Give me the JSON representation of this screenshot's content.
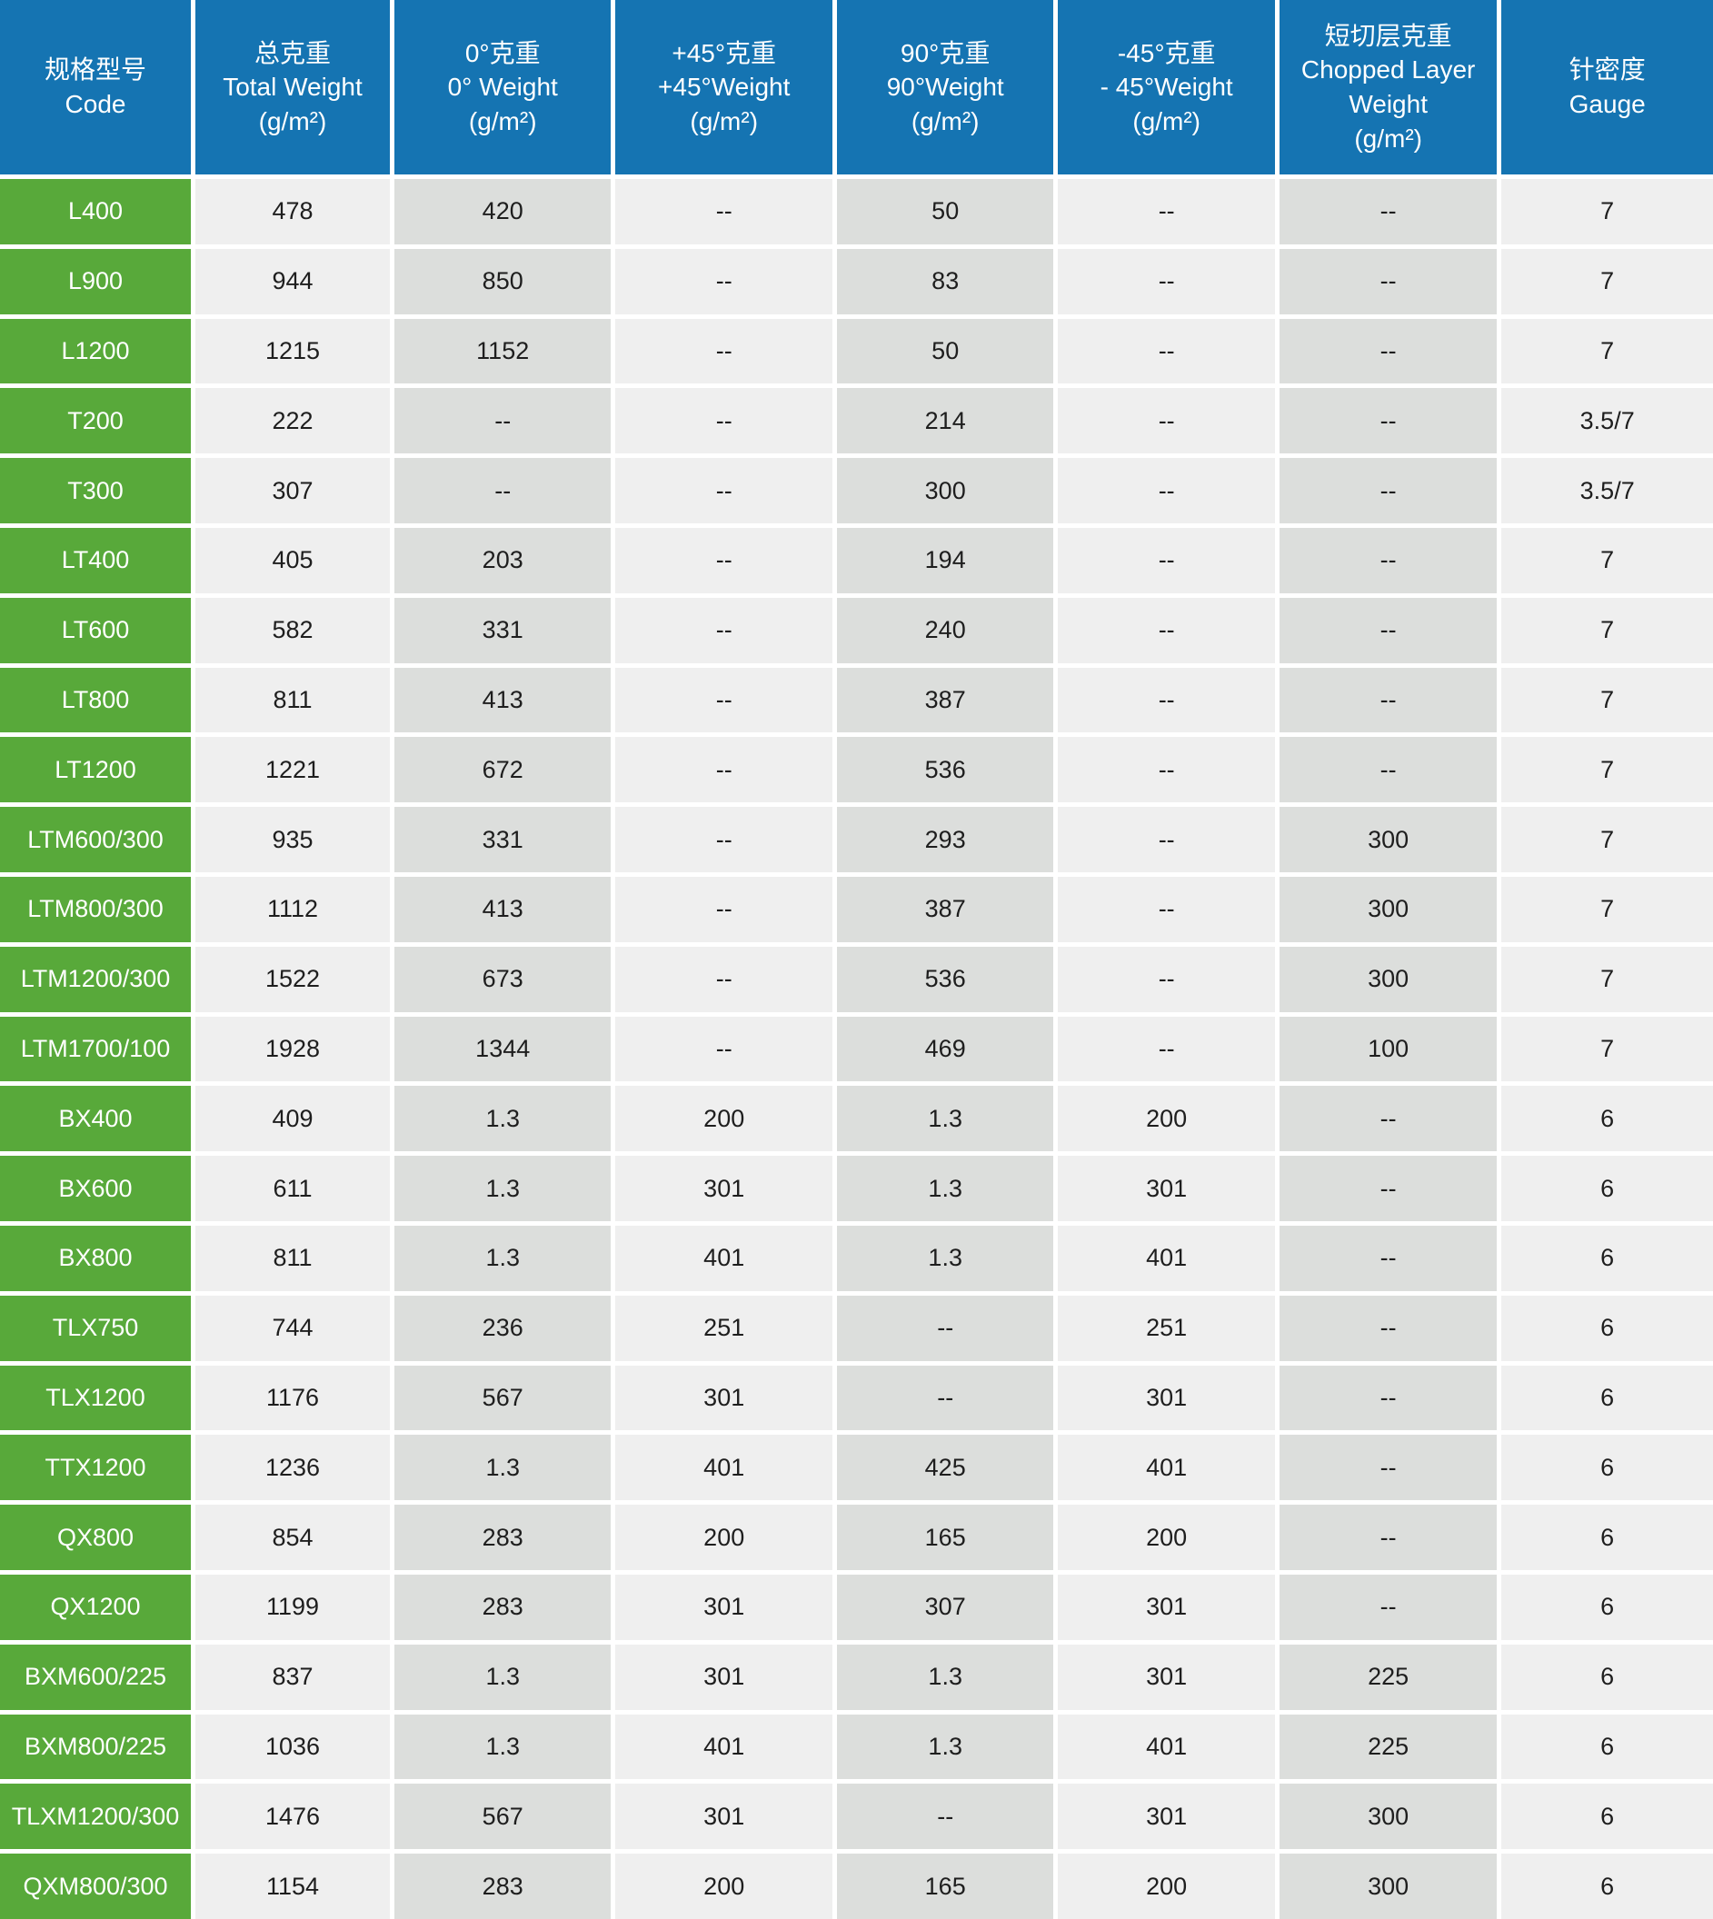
{
  "table": {
    "columns": [
      {
        "zh": "规格型号",
        "en": "Code",
        "unit": ""
      },
      {
        "zh": "总克重",
        "en": "Total Weight",
        "unit": "(g/m²)"
      },
      {
        "zh": "0°克重",
        "en": "0° Weight",
        "unit": "(g/m²)"
      },
      {
        "zh": "+45°克重",
        "en": "+45°Weight",
        "unit": "(g/m²)"
      },
      {
        "zh": "90°克重",
        "en": "90°Weight",
        "unit": "(g/m²)"
      },
      {
        "zh": "-45°克重",
        "en": "- 45°Weight",
        "unit": "(g/m²)"
      },
      {
        "zh": "短切层克重",
        "en": "Chopped Layer Weight",
        "unit": "(g/m²)"
      },
      {
        "zh": "针密度",
        "en": "Gauge",
        "unit": ""
      }
    ],
    "rows": [
      [
        "L400",
        "478",
        "420",
        "--",
        "50",
        "--",
        "--",
        "7"
      ],
      [
        "L900",
        "944",
        "850",
        "--",
        "83",
        "--",
        "--",
        "7"
      ],
      [
        "L1200",
        "1215",
        "1152",
        "--",
        "50",
        "--",
        "--",
        "7"
      ],
      [
        "T200",
        "222",
        "--",
        "--",
        "214",
        "--",
        "--",
        "3.5/7"
      ],
      [
        "T300",
        "307",
        "--",
        "--",
        "300",
        "--",
        "--",
        "3.5/7"
      ],
      [
        "LT400",
        "405",
        "203",
        "--",
        "194",
        "--",
        "--",
        "7"
      ],
      [
        "LT600",
        "582",
        "331",
        "--",
        "240",
        "--",
        "--",
        "7"
      ],
      [
        "LT800",
        "811",
        "413",
        "--",
        "387",
        "--",
        "--",
        "7"
      ],
      [
        "LT1200",
        "1221",
        "672",
        "--",
        "536",
        "--",
        "--",
        "7"
      ],
      [
        "LTM600/300",
        "935",
        "331",
        "--",
        "293",
        "--",
        "300",
        "7"
      ],
      [
        "LTM800/300",
        "1112",
        "413",
        "--",
        "387",
        "--",
        "300",
        "7"
      ],
      [
        "LTM1200/300",
        "1522",
        "673",
        "--",
        "536",
        "--",
        "300",
        "7"
      ],
      [
        "LTM1700/100",
        "1928",
        "1344",
        "--",
        "469",
        "--",
        "100",
        "7"
      ],
      [
        "BX400",
        "409",
        "1.3",
        "200",
        "1.3",
        "200",
        "--",
        "6"
      ],
      [
        "BX600",
        "611",
        "1.3",
        "301",
        "1.3",
        "301",
        "--",
        "6"
      ],
      [
        "BX800",
        "811",
        "1.3",
        "401",
        "1.3",
        "401",
        "--",
        "6"
      ],
      [
        "TLX750",
        "744",
        "236",
        "251",
        "--",
        "251",
        "--",
        "6"
      ],
      [
        "TLX1200",
        "1176",
        "567",
        "301",
        "--",
        "301",
        "--",
        "6"
      ],
      [
        "TTX1200",
        "1236",
        "1.3",
        "401",
        "425",
        "401",
        "--",
        "6"
      ],
      [
        "QX800",
        "854",
        "283",
        "200",
        "165",
        "200",
        "--",
        "6"
      ],
      [
        "QX1200",
        "1199",
        "283",
        "301",
        "307",
        "301",
        "--",
        "6"
      ],
      [
        "BXM600/225",
        "837",
        "1.3",
        "301",
        "1.3",
        "301",
        "225",
        "6"
      ],
      [
        "BXM800/225",
        "1036",
        "1.3",
        "401",
        "1.3",
        "401",
        "225",
        "6"
      ],
      [
        "TLXM1200/300",
        "1476",
        "567",
        "301",
        "--",
        "301",
        "300",
        "6"
      ],
      [
        "QXM800/300",
        "1154",
        "283",
        "200",
        "165",
        "200",
        "300",
        "6"
      ]
    ],
    "colors": {
      "header_blue": "#1574b2",
      "code_green": "#58a93a",
      "cell_light_gray": "#efefef",
      "cell_dark_gray": "#dcdedc",
      "separator_white": "#ffffff",
      "text_dark": "#1e1e1e"
    }
  }
}
